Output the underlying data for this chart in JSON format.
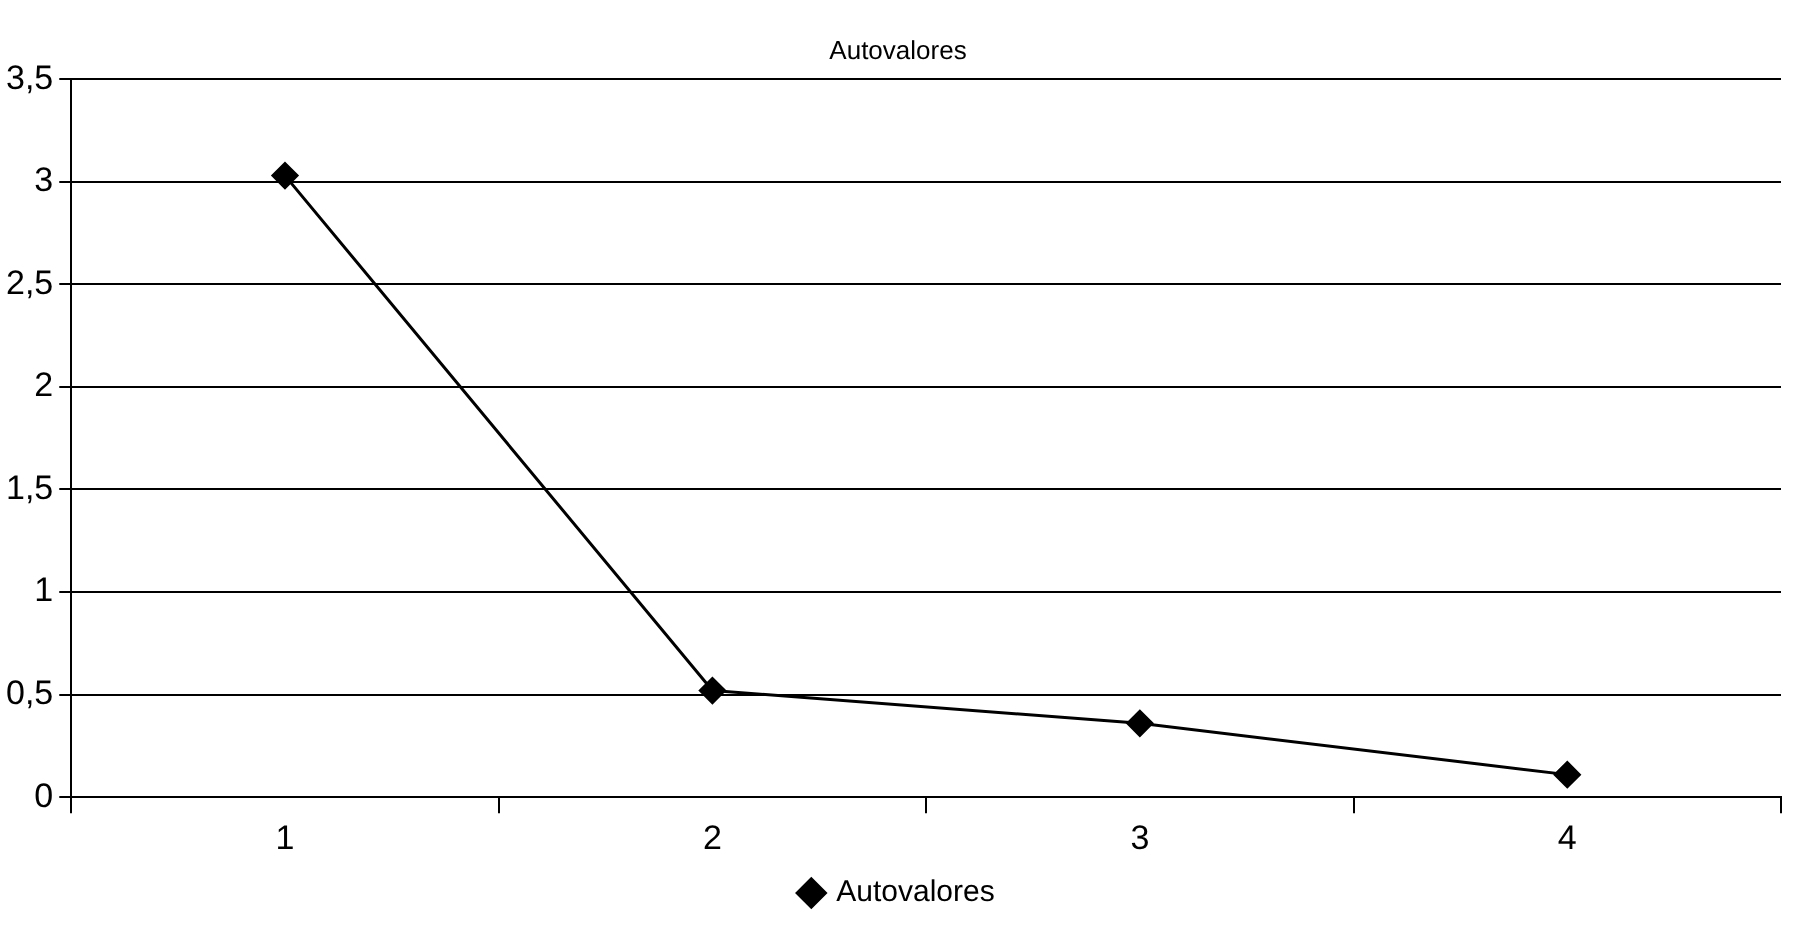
{
  "chart_data": {
    "type": "line",
    "title": "Autovalores",
    "categories": [
      "1",
      "2",
      "3",
      "4"
    ],
    "series": [
      {
        "name": "Autovalores",
        "color": "#000000",
        "values": [
          3.03,
          0.52,
          0.36,
          0.11
        ]
      }
    ],
    "ylim": [
      0,
      3.5
    ],
    "yticks": [
      0,
      {
        "value": 0.5,
        "label": "0,5"
      },
      1,
      {
        "value": 1.5,
        "label": "1,5"
      },
      2,
      {
        "value": 2.5,
        "label": "2,5"
      },
      3,
      {
        "value": 3.5,
        "label": "3,5"
      }
    ],
    "grid": "y",
    "legend": "bottom",
    "marker": "diamond",
    "line_style": "solid"
  }
}
